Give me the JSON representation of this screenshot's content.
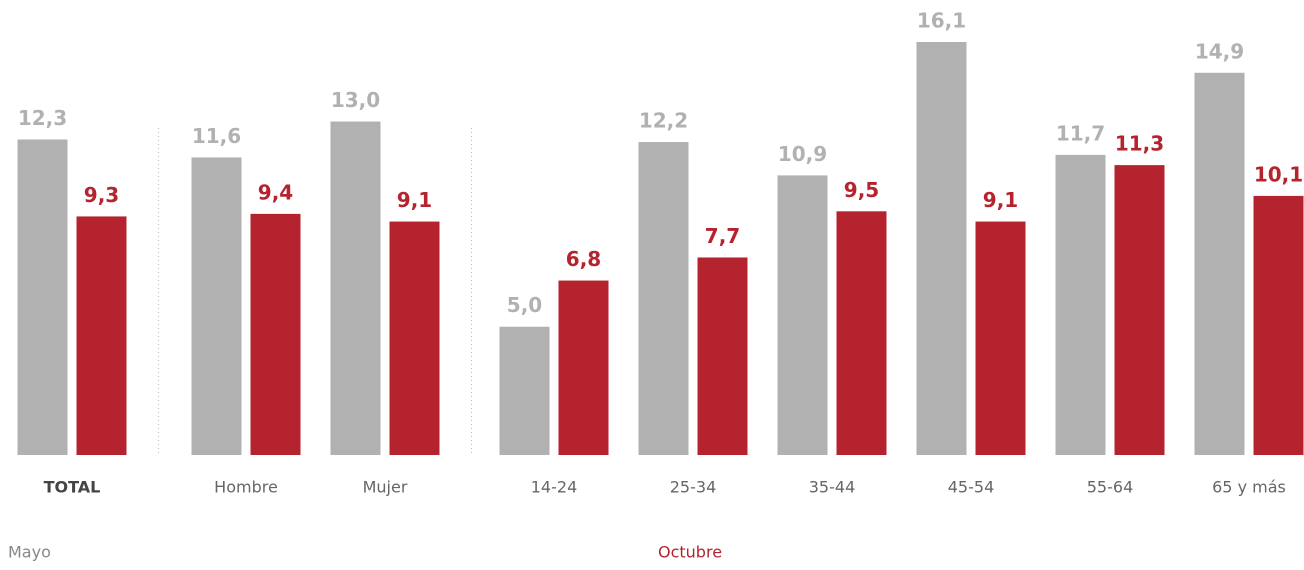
{
  "chart_data": {
    "type": "bar",
    "categories": [
      "TOTAL",
      "Hombre",
      "Mujer",
      "14-24",
      "25-34",
      "35-44",
      "45-54",
      "55-64",
      "65 y más"
    ],
    "series": [
      {
        "name": "Mayo",
        "color": "#b1b1b1",
        "values": [
          12.3,
          11.6,
          13.0,
          5.0,
          12.2,
          10.9,
          16.1,
          11.7,
          14.9
        ],
        "value_labels": [
          "12,3",
          "11,6",
          "13,0",
          "5,0",
          "12,2",
          "10,9",
          "16,1",
          "11,7",
          "14,9"
        ]
      },
      {
        "name": "Octubre",
        "color": "#b5232f",
        "values": [
          9.3,
          9.4,
          9.1,
          6.8,
          7.7,
          9.5,
          9.1,
          11.3,
          10.1
        ],
        "value_labels": [
          "9,3",
          "9,4",
          "9,1",
          "6,8",
          "7,7",
          "9,5",
          "9,1",
          "11,3",
          "10,1"
        ]
      }
    ]
  }
}
